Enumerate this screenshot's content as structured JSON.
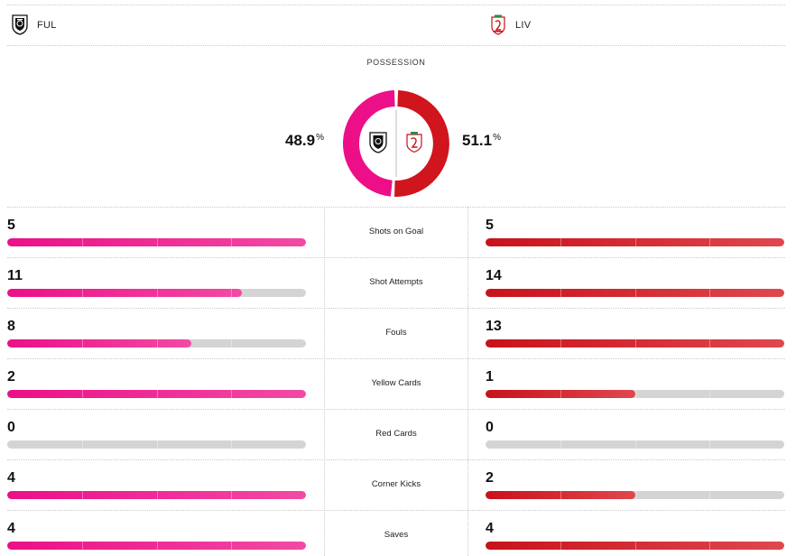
{
  "teams": {
    "home": {
      "abbr": "FUL",
      "crest_icon": "fulham-crest-icon",
      "color": "#ec0f88"
    },
    "away": {
      "abbr": "LIV",
      "crest_icon": "liverpool-crest-icon",
      "color": "#d0151d"
    }
  },
  "possession": {
    "label": "POSSESSION",
    "home_value": "48.9",
    "away_value": "51.1",
    "percent_sign": "%",
    "home_fraction": 0.489,
    "away_fraction": 0.511
  },
  "stats": [
    {
      "label": "Shots on Goal",
      "home": "5",
      "away": "5",
      "home_fill": 1.0,
      "away_fill": 1.0
    },
    {
      "label": "Shot Attempts",
      "home": "11",
      "away": "14",
      "home_fill": 0.786,
      "away_fill": 1.0
    },
    {
      "label": "Fouls",
      "home": "8",
      "away": "13",
      "home_fill": 0.615,
      "away_fill": 1.0
    },
    {
      "label": "Yellow Cards",
      "home": "2",
      "away": "1",
      "home_fill": 1.0,
      "away_fill": 0.5
    },
    {
      "label": "Red Cards",
      "home": "0",
      "away": "0",
      "home_fill": 0,
      "away_fill": 0
    },
    {
      "label": "Corner Kicks",
      "home": "4",
      "away": "2",
      "home_fill": 1.0,
      "away_fill": 0.5
    },
    {
      "label": "Saves",
      "home": "4",
      "away": "4",
      "home_fill": 1.0,
      "away_fill": 1.0
    }
  ]
}
